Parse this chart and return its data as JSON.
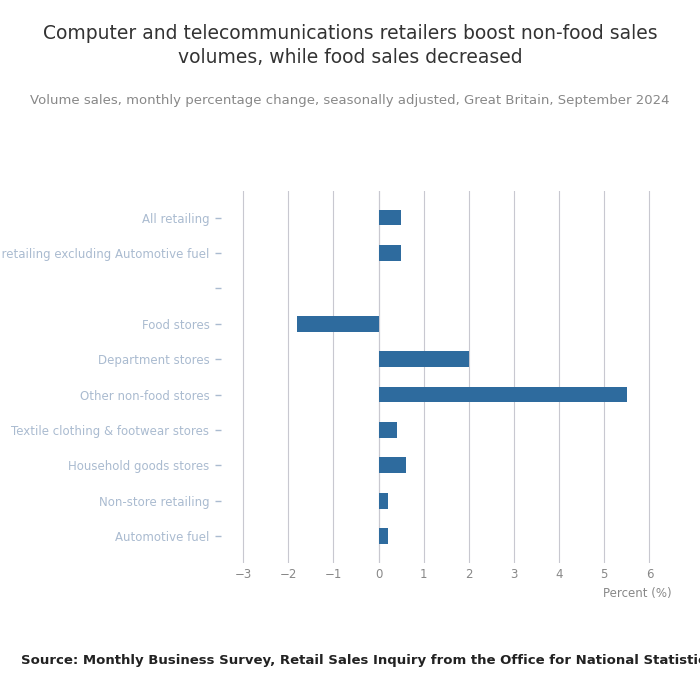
{
  "categories": [
    "Automotive fuel",
    "Non-store retailing",
    "Household goods stores",
    "Textile clothing & footwear stores",
    "Other non-food stores",
    "Department stores",
    "Food stores",
    "",
    "All retailing excluding Automotive fuel",
    "All retailing"
  ],
  "values": [
    0.2,
    0.2,
    0.6,
    0.4,
    5.5,
    2.0,
    -1.8,
    null,
    0.5,
    0.5
  ],
  "bar_color": "#2e6b9e",
  "title_line1": "Computer and telecommunications retailers boost non-food sales",
  "title_line2": "volumes, while food sales decreased",
  "subtitle": "Volume sales, monthly percentage change, seasonally adjusted, Great Britain, September 2024",
  "xlabel": "Percent (%)",
  "xlim_min": -3.5,
  "xlim_max": 6.5,
  "xticks": [
    -3,
    -2,
    -1,
    0,
    1,
    2,
    3,
    4,
    5,
    6
  ],
  "xtick_labels": [
    "−3",
    "−2",
    "−1",
    "0",
    "1",
    "2",
    "3",
    "4",
    "5",
    "6"
  ],
  "source": "Source: Monthly Business Survey, Retail Sales Inquiry from the Office for National Statistics",
  "title_fontsize": 13.5,
  "subtitle_fontsize": 9.5,
  "source_fontsize": 9.5,
  "bar_height": 0.45,
  "background_color": "#ffffff",
  "grid_color": "#c8c8d0",
  "label_color": "#888888",
  "title_color": "#333333",
  "source_color": "#222222"
}
